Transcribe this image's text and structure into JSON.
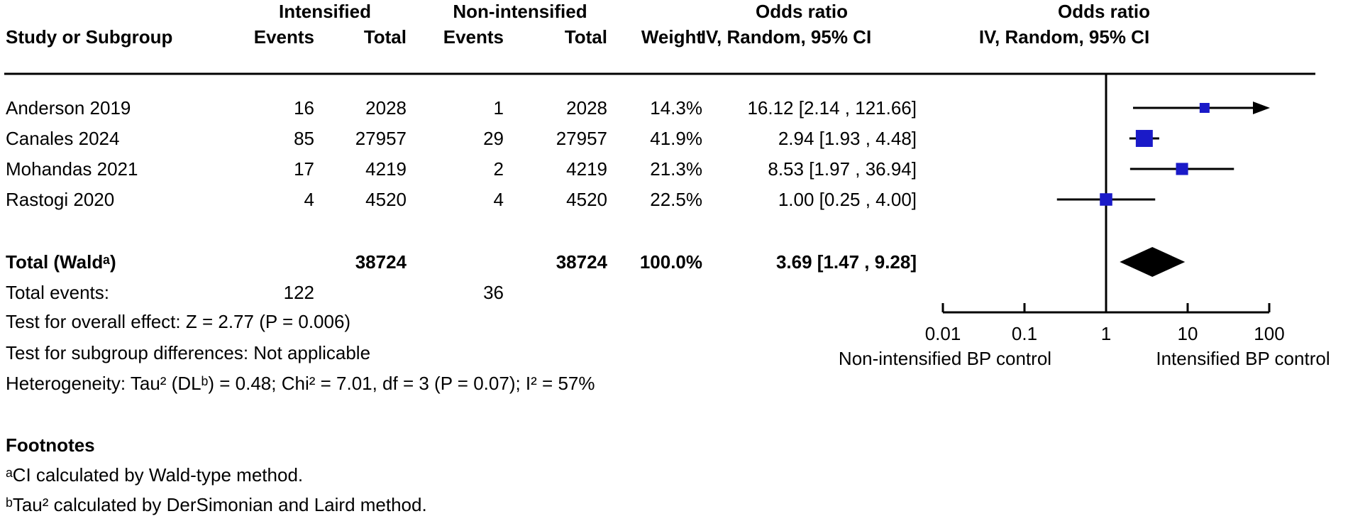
{
  "header": {
    "group_intensified": "Intensified",
    "group_non_intensified": "Non-intensified",
    "odds_ratio_col": "Odds ratio",
    "odds_ratio_plot": "Odds ratio",
    "study": "Study or Subgroup",
    "events_i": "Events",
    "total_i": "Total",
    "events_c": "Events",
    "total_c": "Total",
    "weight": "Weight",
    "ci_col": "IV, Random, 95% CI",
    "ci_plot": "IV, Random, 95% CI"
  },
  "rows": [
    {
      "study": "Anderson 2019",
      "events_i": "16",
      "total_i": "2028",
      "events_c": "1",
      "total_c": "2028",
      "weight": "14.3%",
      "or_ci": "16.12 [2.14 , 121.66]"
    },
    {
      "study": "Canales 2024",
      "events_i": "85",
      "total_i": "27957",
      "events_c": "29",
      "total_c": "27957",
      "weight": "41.9%",
      "or_ci": "2.94 [1.93 , 4.48]"
    },
    {
      "study": "Mohandas 2021",
      "events_i": "17",
      "total_i": "4219",
      "events_c": "2",
      "total_c": "4219",
      "weight": "21.3%",
      "or_ci": "8.53 [1.97 , 36.94]"
    },
    {
      "study": "Rastogi 2020",
      "events_i": "4",
      "total_i": "4520",
      "events_c": "4",
      "total_c": "4520",
      "weight": "22.5%",
      "or_ci": "1.00 [0.25 , 4.00]"
    }
  ],
  "totals": {
    "label": "Total (Waldᵃ)",
    "total_i": "38724",
    "total_c": "38724",
    "weight": "100.0%",
    "or_ci": "3.69 [1.47 , 9.28]",
    "events_label": "Total events:",
    "events_i": "122",
    "events_c": "36"
  },
  "stats": {
    "overall_effect": "Test for overall effect: Z = 2.77 (P = 0.006)",
    "subgroup": "Test for subgroup differences: Not applicable",
    "heterogeneity": "Heterogeneity: Tau² (DLᵇ) = 0.48; Chi² = 7.01, df = 3 (P = 0.07); I² = 57%"
  },
  "footnotes": {
    "title": "Footnotes",
    "a": "ᵃCI calculated by Wald-type method.",
    "b": "ᵇTau² calculated by DerSimonian and Laird method."
  },
  "plot": {
    "direction_left": "Non-intensified BP control",
    "direction_right": "Intensified BP control",
    "marker_color": "#1a1ac8",
    "diamond_color": "#000000",
    "line_color": "#000000"
  },
  "chart_data": {
    "type": "forest",
    "x_scale": "log10",
    "effect_measure": "Odds ratio (IV, Random, 95% CI)",
    "axis": {
      "min": 0.01,
      "max": 100,
      "ticks": [
        0.01,
        0.1,
        1,
        10,
        100
      ],
      "ref_line": 1
    },
    "studies": [
      {
        "label": "Anderson 2019",
        "or": 16.12,
        "ci_low": 2.14,
        "ci_high": 121.66,
        "weight_pct": 14.3
      },
      {
        "label": "Canales 2024",
        "or": 2.94,
        "ci_low": 1.93,
        "ci_high": 4.48,
        "weight_pct": 41.9
      },
      {
        "label": "Mohandas 2021",
        "or": 8.53,
        "ci_low": 1.97,
        "ci_high": 36.94,
        "weight_pct": 21.3
      },
      {
        "label": "Rastogi 2020",
        "or": 1.0,
        "ci_low": 0.25,
        "ci_high": 4.0,
        "weight_pct": 22.5
      }
    ],
    "overall": {
      "label": "Total (Waldᵃ)",
      "or": 3.69,
      "ci_low": 1.47,
      "ci_high": 9.28,
      "weight_pct": 100.0
    }
  }
}
